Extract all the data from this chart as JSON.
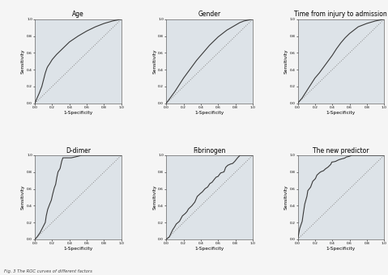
{
  "titles": [
    "Age",
    "Gender",
    "Time from injury to admission",
    "D-dimer",
    "Fibrinogen",
    "The new predictor"
  ],
  "xlabel": "1-Specificity",
  "ylabel": "Sensitivity",
  "tick_labels": [
    "0.0",
    "0.2",
    "0.4",
    "0.6",
    "0.8",
    "1.0"
  ],
  "background_color": "#dde3e8",
  "fig_background": "#f5f5f5",
  "curve_color": "#3a3a3a",
  "diag_color": "#888888",
  "fig_caption": "Fig. 3 The ROC curves of different factors",
  "figsize": [
    4.79,
    3.4
  ],
  "dpi": 100
}
